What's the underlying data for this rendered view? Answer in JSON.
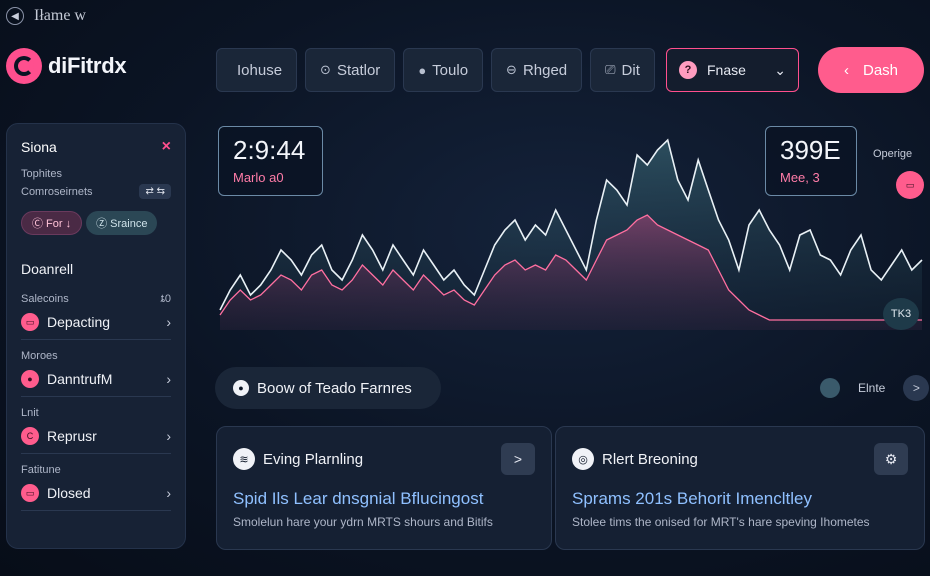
{
  "window": {
    "title": "Iłame w"
  },
  "brand": {
    "name": "diFitrdx"
  },
  "topnav": {
    "items": [
      {
        "label": "Iohuse",
        "icon": ""
      },
      {
        "label": "Statlor",
        "icon": "⊙"
      },
      {
        "label": "Toulo",
        "icon": "●"
      },
      {
        "label": "Rhged",
        "icon": "⊖"
      },
      {
        "label": "Dit",
        "icon": "⎚"
      }
    ],
    "select": {
      "value": "Fnase",
      "badge": "?"
    },
    "primary": {
      "label": "Dash"
    }
  },
  "sidebar": {
    "title": "Siona",
    "small1": "Tophites",
    "small2": "Comroseirnets",
    "toggle": "⇄ ⇆",
    "chip1": "Ⓒ For ↓",
    "chip2": "Ⓩ Sraince",
    "section": "Doanrell",
    "groups": [
      {
        "head": "Salecoins",
        "head_right": "ȶ0",
        "item": "Depacting",
        "pill": "▭"
      },
      {
        "head": "Moroes",
        "head_right": "",
        "item": "DanntrufM",
        "pill": "●"
      },
      {
        "head": "Lnit",
        "head_right": "",
        "item": "Reprusr",
        "pill": "C"
      },
      {
        "head": "Fatitune",
        "head_right": "",
        "item": "Dlosed",
        "pill": "▭"
      }
    ]
  },
  "stats": {
    "left": {
      "value": "2:9:44",
      "label": "Marlo a0"
    },
    "right": {
      "value": "399E",
      "label": "Mee, 3"
    },
    "legend_label": "Operige",
    "badge": "TK3"
  },
  "section_header": {
    "label": "Boow of Teado Farnres",
    "icon": "●"
  },
  "right_controls": {
    "label": "Elnte",
    "next": ">"
  },
  "cards": [
    {
      "icon": "≋",
      "head": "Eving Plarnling",
      "button": ">",
      "title": "Spid Ils Lear dnsgnial Bflucingost",
      "subtitle": "Smolelun hare your ydrn MRTS shours and Bitifs"
    },
    {
      "icon": "◎",
      "head": "Rlert Breoning",
      "button": "⚙",
      "title": "Sprams 201s Behorit Imencltley",
      "subtitle": "Stolee tims the onised for MRT's hare speving Ihometes"
    }
  ],
  "colors": {
    "accent_pink": "#ff5c8d",
    "accent_teal": "#3e6f7c",
    "background": "#0b1424",
    "panel": "#172235"
  },
  "chart_data": {
    "type": "area",
    "x": [
      0,
      1,
      2,
      3,
      4,
      5,
      6,
      7,
      8,
      9,
      10,
      11,
      12,
      13,
      14,
      15,
      16,
      17,
      18,
      19,
      20,
      21,
      22,
      23,
      24,
      25,
      26,
      27,
      28,
      29,
      30,
      31,
      32,
      33,
      34,
      35,
      36,
      37,
      38,
      39,
      40,
      41,
      42,
      43,
      44,
      45,
      46,
      47,
      48,
      49,
      50,
      51,
      52,
      53,
      54,
      55,
      56,
      57,
      58,
      59,
      60,
      61,
      62,
      63,
      64,
      65,
      66,
      67,
      68,
      69
    ],
    "series": [
      {
        "values": [
          20,
          40,
          55,
          35,
          45,
          60,
          80,
          70,
          55,
          75,
          85,
          60,
          50,
          70,
          95,
          80,
          60,
          85,
          70,
          55,
          80,
          65,
          50,
          60,
          45,
          35,
          60,
          85,
          100,
          110,
          90,
          105,
          95,
          120,
          100,
          80,
          60,
          110,
          150,
          140,
          125,
          175,
          165,
          180,
          190,
          150,
          130,
          170,
          140,
          110,
          90,
          60,
          105,
          120,
          100,
          85,
          60,
          95,
          100,
          75,
          70,
          55,
          80,
          95,
          60,
          50,
          65,
          80,
          60,
          70
        ]
      },
      {
        "values": [
          15,
          30,
          40,
          30,
          35,
          45,
          55,
          50,
          40,
          55,
          60,
          45,
          40,
          50,
          65,
          55,
          45,
          60,
          50,
          40,
          55,
          45,
          35,
          40,
          30,
          25,
          40,
          55,
          65,
          70,
          60,
          65,
          60,
          75,
          70,
          60,
          50,
          70,
          90,
          95,
          100,
          110,
          115,
          105,
          100,
          95,
          90,
          85,
          80,
          60,
          40,
          30,
          20,
          15,
          10,
          10,
          10,
          10,
          10,
          10,
          10,
          10,
          10,
          10,
          10,
          10,
          10,
          10,
          10,
          10
        ]
      }
    ]
  }
}
